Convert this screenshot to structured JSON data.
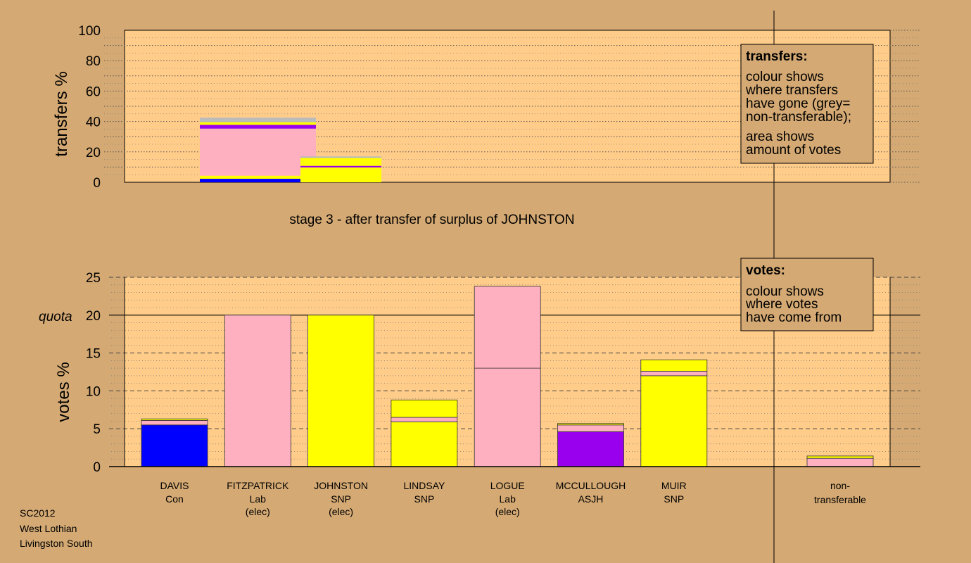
{
  "chart_data": [
    {
      "type": "bar",
      "ylabel": "transfers %",
      "ylim": [
        0,
        100
      ],
      "yticks": [
        0,
        20,
        40,
        60,
        80,
        100
      ],
      "stage_label": "stage 3 - after transfer of surplus of JOHNSTON",
      "bars": [
        {
          "segments": [
            {
              "from": 0,
              "to": 2.3,
              "color": "#0000ff"
            },
            {
              "from": 2.3,
              "to": 4.3,
              "color": "#ffff00"
            },
            {
              "from": 4.3,
              "to": 35.3,
              "color": "#ffb0c0"
            },
            {
              "from": 35.3,
              "to": 37.8,
              "color": "#9900ee"
            },
            {
              "from": 37.8,
              "to": 39.5,
              "color": "#ffff00"
            },
            {
              "from": 39.5,
              "to": 42.5,
              "color": "#bbbbbb"
            }
          ]
        },
        {
          "segments": [
            {
              "from": 0,
              "to": 9.8,
              "color": "#ffff00"
            },
            {
              "from": 9.8,
              "to": 10.8,
              "color": "#9900ee"
            },
            {
              "from": 10.8,
              "to": 16.0,
              "color": "#ffff00"
            },
            {
              "from": 16.0,
              "to": 17.0,
              "color": "#bbbbbb"
            }
          ]
        }
      ]
    },
    {
      "type": "bar",
      "ylabel": "votes %",
      "ylim": [
        0,
        25
      ],
      "yticks": [
        0,
        5,
        10,
        15,
        20,
        25
      ],
      "quota": 20,
      "quota_label": "quota",
      "candidates": [
        {
          "name": "DAVIS",
          "party": "Con",
          "status": "",
          "segments": [
            {
              "from": 0,
              "to": 5.5,
              "color": "#0000ff"
            },
            {
              "from": 5.5,
              "to": 6.1,
              "color": "#ffb0c0"
            },
            {
              "from": 6.1,
              "to": 6.3,
              "color": "#ffff00"
            }
          ]
        },
        {
          "name": "FITZPATRICK",
          "party": "Lab",
          "status": "(elec)",
          "segments": [
            {
              "from": 0,
              "to": 20.0,
              "color": "#ffb0c0"
            }
          ]
        },
        {
          "name": "JOHNSTON",
          "party": "SNP",
          "status": "(elec)",
          "segments": [
            {
              "from": 0,
              "to": 20.0,
              "color": "#ffff00"
            }
          ]
        },
        {
          "name": "LINDSAY",
          "party": "SNP",
          "status": "",
          "segments": [
            {
              "from": 0,
              "to": 5.9,
              "color": "#ffff00"
            },
            {
              "from": 5.9,
              "to": 6.5,
              "color": "#ffb0c0"
            },
            {
              "from": 6.5,
              "to": 8.8,
              "color": "#ffff00"
            }
          ]
        },
        {
          "name": "LOGUE",
          "party": "Lab",
          "status": "(elec)",
          "segments": [
            {
              "from": 0,
              "to": 13.0,
              "color": "#ffb0c0"
            },
            {
              "from": 13.0,
              "to": 23.8,
              "color": "#ffb0c0"
            }
          ]
        },
        {
          "name": "MCCULLOUGH",
          "party": "ASJH",
          "status": "",
          "segments": [
            {
              "from": 0,
              "to": 4.6,
              "color": "#9900ee"
            },
            {
              "from": 4.6,
              "to": 5.5,
              "color": "#ffb0c0"
            },
            {
              "from": 5.5,
              "to": 5.7,
              "color": "#ffff00"
            }
          ]
        },
        {
          "name": "MUIR",
          "party": "SNP",
          "status": "",
          "segments": [
            {
              "from": 0,
              "to": 12.0,
              "color": "#ffff00"
            },
            {
              "from": 12.0,
              "to": 12.6,
              "color": "#ffb0c0"
            },
            {
              "from": 12.6,
              "to": 14.1,
              "color": "#ffff00"
            }
          ]
        }
      ],
      "nontransferable": {
        "line1": "non-",
        "line2": "transferable",
        "segments": [
          {
            "from": 0,
            "to": 1.1,
            "color": "#ffb0c0"
          },
          {
            "from": 1.1,
            "to": 1.4,
            "color": "#ffff00"
          }
        ]
      }
    }
  ],
  "legend_transfers": {
    "heading": "transfers:",
    "lines_a": [
      "colour shows",
      "where transfers",
      "have gone (grey=",
      "non-transferable);"
    ],
    "lines_b": [
      "area shows",
      "amount of votes"
    ]
  },
  "legend_votes": {
    "heading": "votes:",
    "lines": [
      "colour shows",
      "where votes",
      "have come from"
    ]
  },
  "footer": [
    "SC2012",
    "West Lothian",
    "Livingston South"
  ],
  "colors": {
    "background": "#d4a973",
    "plot_bg": "#ffcc8a",
    "con": "#0000ff",
    "lab": "#ffb0c0",
    "snp": "#ffff00",
    "asjh": "#9900ee",
    "nontransferable": "#bbbbbb"
  }
}
